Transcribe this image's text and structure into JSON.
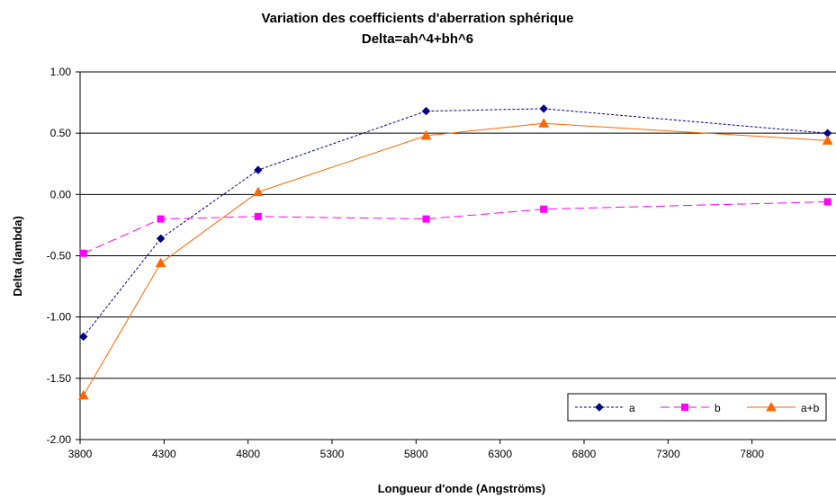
{
  "chart_data": {
    "type": "line",
    "title": "Variation des coefficients d'aberration sphérique",
    "subtitle": "Delta=ah^4+bh^6",
    "xlabel": "Longueur d'onde (Angströms)",
    "ylabel": "Delta (lambda)",
    "xlim": [
      3800,
      8300
    ],
    "ylim": [
      -2.0,
      1.0
    ],
    "x_ticks": [
      3800,
      4300,
      4800,
      5300,
      5800,
      6300,
      6800,
      7300,
      7800
    ],
    "x_tick_labels": [
      "3800",
      "4300",
      "4800",
      "5300",
      "5800",
      "6300",
      "6800",
      "7300",
      "7800"
    ],
    "y_ticks": [
      1.0,
      0.5,
      0.0,
      -0.5,
      -1.0,
      -1.5,
      -2.0
    ],
    "y_tick_labels": [
      "1.00",
      "0.50",
      "0.00",
      "-0.50",
      "-1.00",
      "-1.50",
      "-2.00"
    ],
    "grid": "horizontal",
    "legend_position": "bottom-right",
    "series": [
      {
        "name": "a",
        "color": "#000080",
        "marker": "diamond",
        "line_style": "dotted",
        "points": [
          [
            3820,
            -1.16
          ],
          [
            4280,
            -0.36
          ],
          [
            4860,
            0.2
          ],
          [
            5860,
            0.68
          ],
          [
            6560,
            0.7
          ],
          [
            8250,
            0.5
          ]
        ]
      },
      {
        "name": "b",
        "color": "#ff00ff",
        "marker": "square",
        "line_style": "dashed",
        "points": [
          [
            3820,
            -0.48
          ],
          [
            4280,
            -0.2
          ],
          [
            4860,
            -0.18
          ],
          [
            5860,
            -0.2
          ],
          [
            6560,
            -0.12
          ],
          [
            8250,
            -0.06
          ]
        ]
      },
      {
        "name": "a+b",
        "color": "#ff6600",
        "marker": "triangle",
        "line_style": "solid",
        "points": [
          [
            3820,
            -1.64
          ],
          [
            4280,
            -0.56
          ],
          [
            4860,
            0.02
          ],
          [
            5860,
            0.48
          ],
          [
            6560,
            0.58
          ],
          [
            8250,
            0.44
          ]
        ]
      }
    ]
  }
}
